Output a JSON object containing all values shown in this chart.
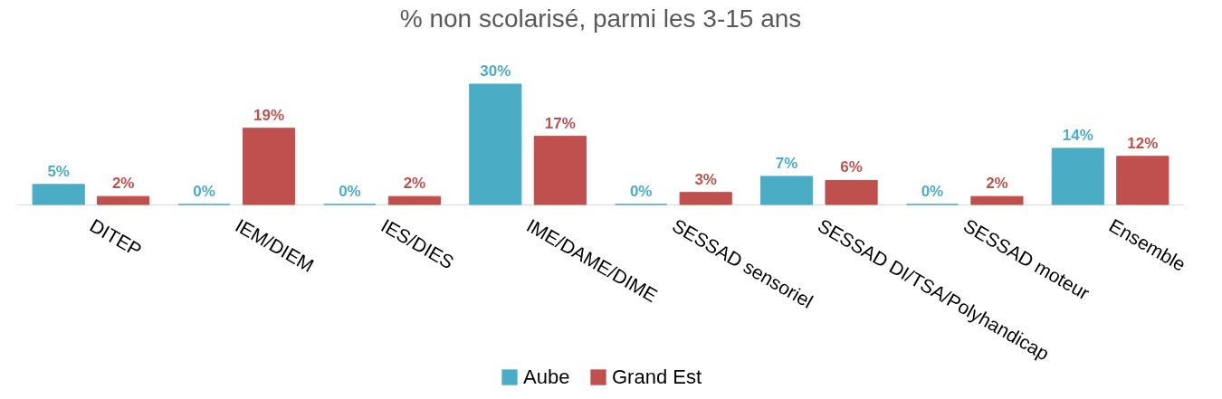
{
  "chart_data": {
    "type": "bar",
    "title": "% non scolarisé, parmi les 3-15 ans",
    "categories": [
      "DITEP",
      "IEM/DIEM",
      "IES/DIES",
      "IME/DAME/DIME",
      "SESSAD sensoriel",
      "SESSAD DI/TSA/Polyhandicap",
      "SESSAD moteur",
      "Ensemble"
    ],
    "series": [
      {
        "name": "Aube",
        "color": "#4bacc6",
        "values": [
          5,
          0,
          0,
          30,
          0,
          7,
          0,
          14
        ],
        "value_labels": [
          "5%",
          "0%",
          "0%",
          "30%",
          "0%",
          "7%",
          "0%",
          "14%"
        ]
      },
      {
        "name": "Grand Est",
        "color": "#c0504d",
        "values": [
          2,
          19,
          2,
          17,
          3,
          6,
          2,
          12
        ],
        "value_labels": [
          "2%",
          "19%",
          "2%",
          "17%",
          "3%",
          "6%",
          "2%",
          "12%"
        ]
      }
    ],
    "grid": false,
    "legend": "bottom"
  }
}
